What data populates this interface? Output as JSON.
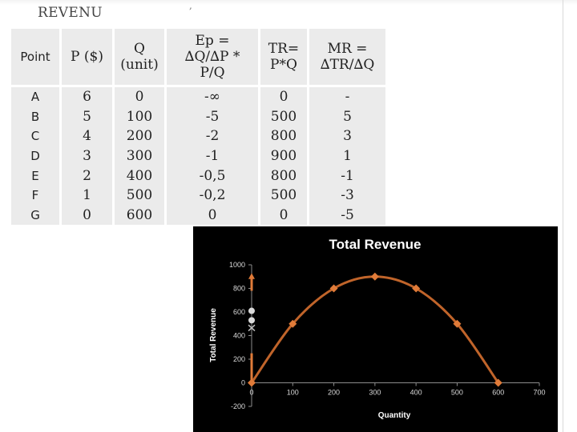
{
  "slide": {
    "title": "REVENU",
    "title_mark": ","
  },
  "table": {
    "headers": [
      {
        "key": "point",
        "lines": [
          "Point"
        ]
      },
      {
        "key": "price",
        "lines": [
          "P ($)"
        ]
      },
      {
        "key": "quantity",
        "lines": [
          "Q",
          "(unit)"
        ]
      },
      {
        "key": "elasticity",
        "lines": [
          "Ep =",
          "∆Q/∆P *",
          "P/Q"
        ]
      },
      {
        "key": "total_revenue",
        "lines": [
          "TR=",
          "P*Q"
        ]
      },
      {
        "key": "marginal_revenue",
        "lines": [
          "MR =",
          "∆TR/∆Q"
        ]
      }
    ],
    "rows": [
      {
        "point": "A",
        "price": "6",
        "quantity": "0",
        "elasticity": "-∞",
        "total_revenue": "0",
        "marginal_revenue": "-"
      },
      {
        "point": "B",
        "price": "5",
        "quantity": "100",
        "elasticity": "-5",
        "total_revenue": "500",
        "marginal_revenue": "5"
      },
      {
        "point": "C",
        "price": "4",
        "quantity": "200",
        "elasticity": "-2",
        "total_revenue": "800",
        "marginal_revenue": "3"
      },
      {
        "point": "D",
        "price": "3",
        "quantity": "300",
        "elasticity": "-1",
        "total_revenue": "900",
        "marginal_revenue": "1"
      },
      {
        "point": "E",
        "price": "2",
        "quantity": "400",
        "elasticity": "-0,5",
        "total_revenue": "800",
        "marginal_revenue": "-1"
      },
      {
        "point": "F",
        "price": "1",
        "quantity": "500",
        "elasticity": "-0,2",
        "total_revenue": "500",
        "marginal_revenue": "-3"
      },
      {
        "point": "G",
        "price": "0",
        "quantity": "600",
        "elasticity": "0",
        "total_revenue": "0",
        "marginal_revenue": "-5"
      }
    ]
  },
  "chart_data": {
    "type": "line",
    "title": "Total Revenue",
    "xlabel": "Quantity",
    "ylabel": "Total Revenue",
    "xlim": [
      0,
      700
    ],
    "ylim": [
      -200,
      1000
    ],
    "xticks": [
      "0",
      "100",
      "200",
      "300",
      "400",
      "500",
      "600",
      "700"
    ],
    "yticks": [
      "-200",
      "0",
      "200",
      "400",
      "600",
      "800",
      "1000"
    ],
    "series": [
      {
        "x": [
          0,
          100,
          200,
          300,
          400,
          500,
          600
        ],
        "y": [
          0,
          500,
          800,
          900,
          800,
          500,
          0
        ]
      }
    ],
    "background": "#000000",
    "line_color": "#c0642a",
    "marker_color": "#e07b39",
    "text_color": "#ffffff",
    "tick_color": "#d9d9d9"
  }
}
